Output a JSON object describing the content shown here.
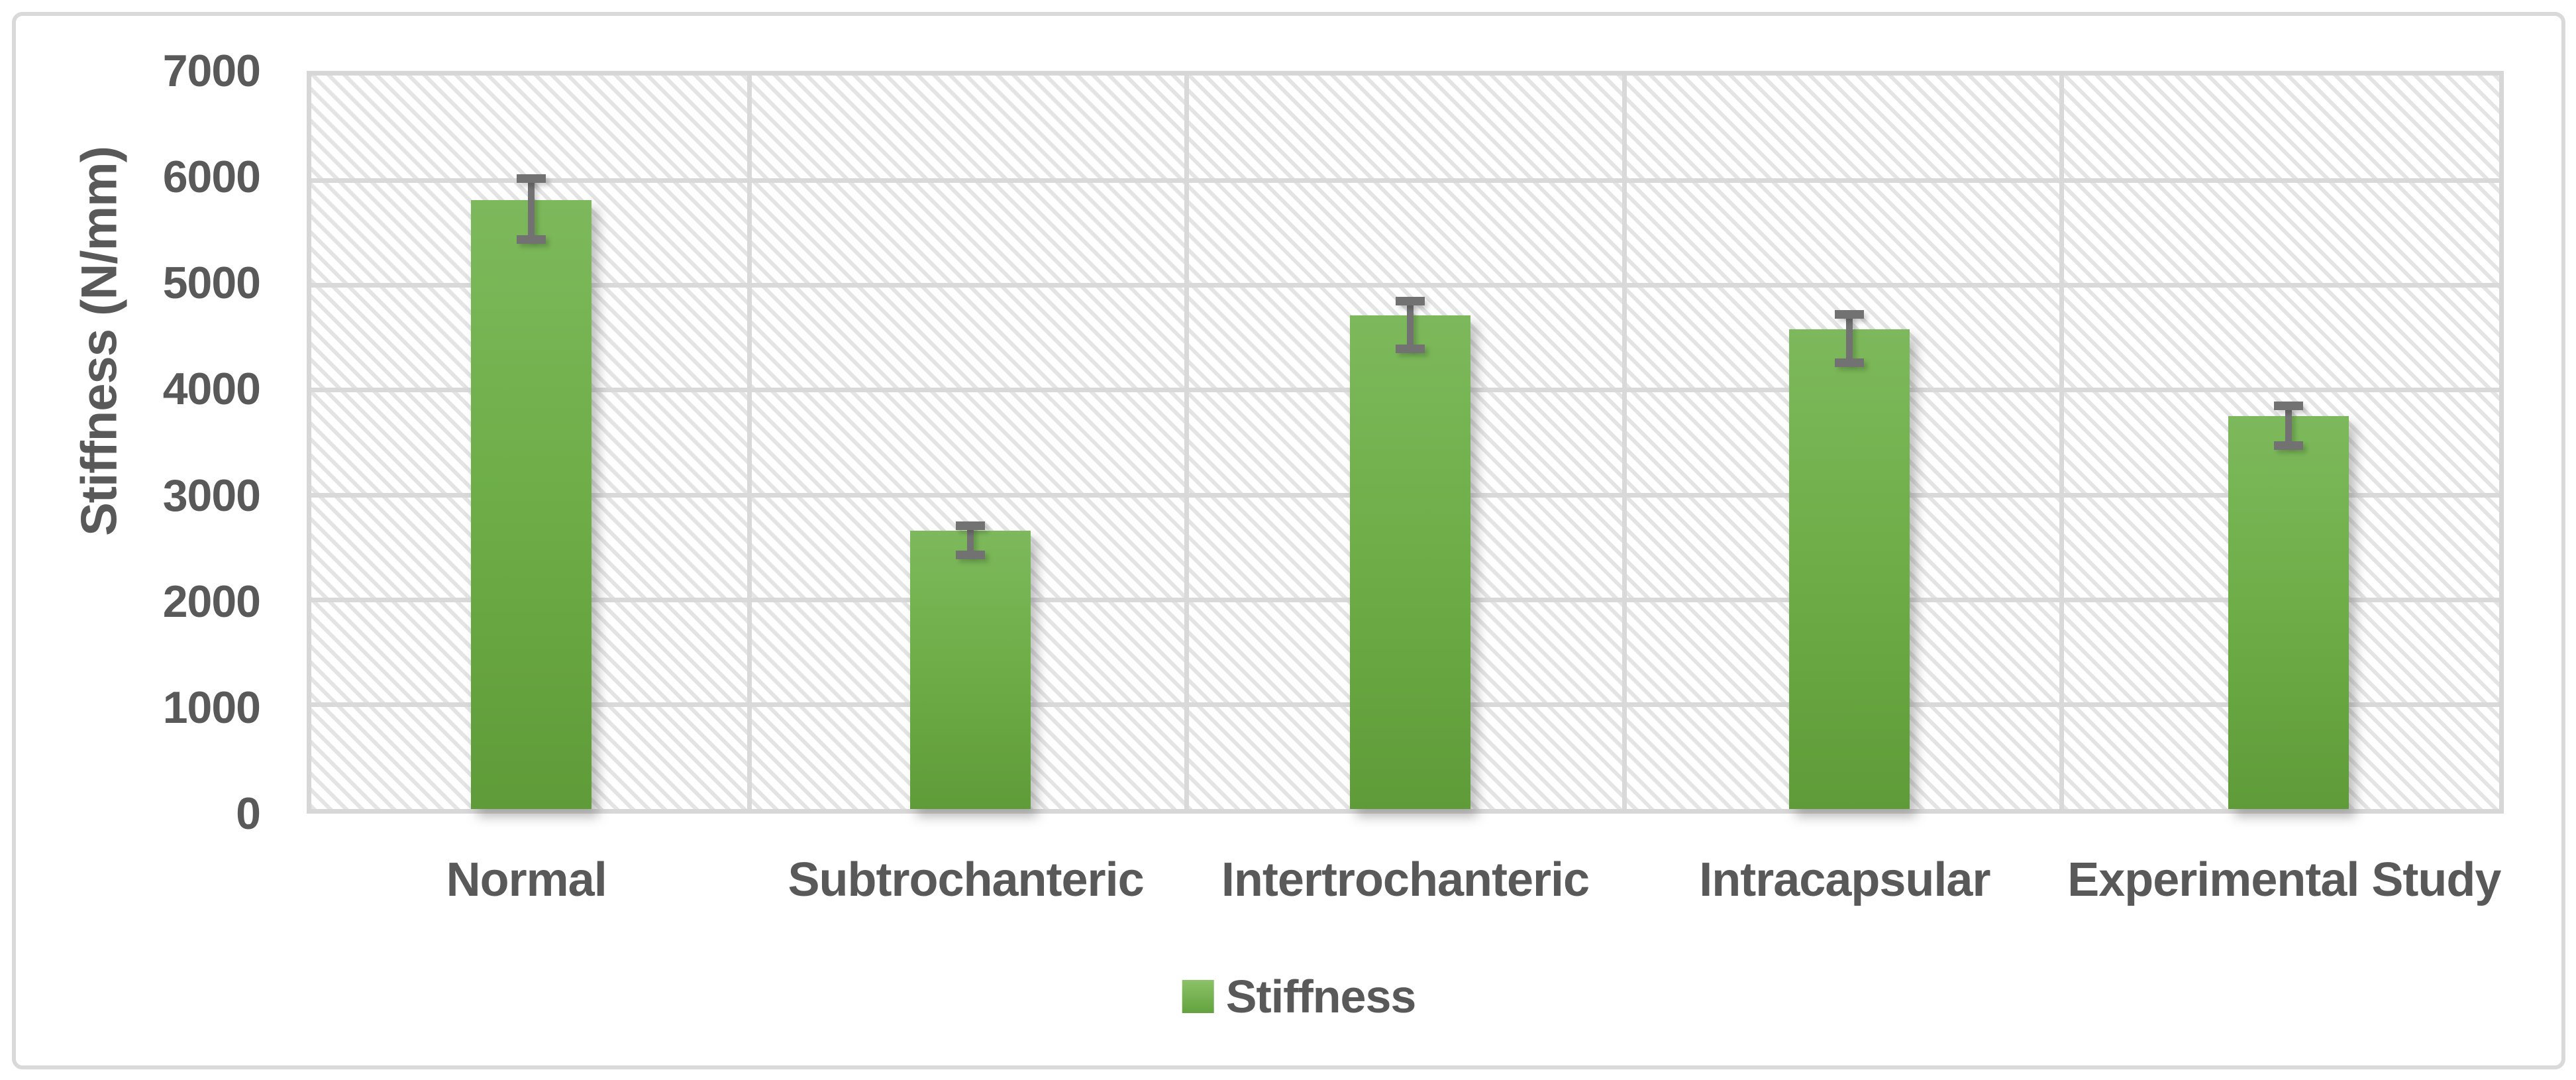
{
  "chart_data": {
    "type": "bar",
    "title": "",
    "xlabel": "",
    "ylabel": "Stiffness (N/mm)",
    "categories": [
      "Normal",
      "Subtrochanteric",
      "Intertrochanteric",
      "Intracapsular",
      "Experimental Study"
    ],
    "series": [
      {
        "name": "Stiffness",
        "values": [
          5740,
          2620,
          4650,
          4520,
          3700
        ],
        "error_bars": [
          290,
          140,
          230,
          230,
          190
        ]
      }
    ],
    "ylim": [
      0,
      7000
    ],
    "yticks": [
      0,
      1000,
      2000,
      3000,
      4000,
      5000,
      6000,
      7000
    ],
    "grid": true,
    "legend_position": "bottom",
    "colors": {
      "bar_gradient_top": "#7db95c",
      "bar_gradient_bottom": "#5f9c39",
      "error_bar": "#727272",
      "gridline": "#d9d9d9",
      "text": "#595959",
      "plot_hatch_stripe": "#e4e4e4",
      "chart_border": "#d9d9d9"
    },
    "background_pattern": "light-downward-diagonal-hatch"
  }
}
